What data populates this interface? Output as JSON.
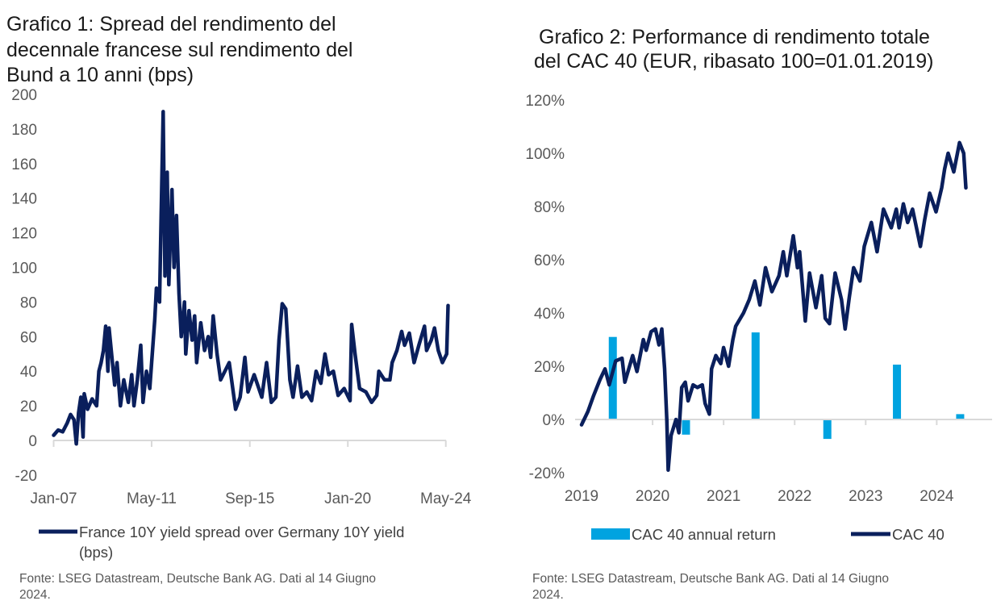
{
  "chart_data": [
    {
      "type": "line",
      "title_lines": [
        "Grafico 1: Spread del rendimento del",
        "decennale francese sul rendimento del",
        "Bund a 10 anni (bps)"
      ],
      "xlabel": "",
      "ylabel": "",
      "ylim": [
        -20,
        200
      ],
      "yticks": [
        "200",
        "180",
        "160",
        "140",
        "120",
        "100",
        "80",
        "60",
        "40",
        "20",
        "0",
        "-20"
      ],
      "ytick_values": [
        200,
        180,
        160,
        140,
        120,
        100,
        80,
        60,
        40,
        20,
        0,
        -20
      ],
      "xticks": [
        "Jan-07",
        "May-11",
        "Sep-15",
        "Jan-20",
        "May-24"
      ],
      "xtick_values": [
        2007.0,
        2011.33,
        2015.67,
        2020.0,
        2024.33
      ],
      "xlim": [
        2007.0,
        2024.33
      ],
      "legend": [
        "France 10Y yield spread over Germany 10Y yield",
        "(bps)"
      ],
      "legend_position": "bottom",
      "source": [
        "Fonte: LSEG Datastream, Deutsche Bank AG. Dati al 14 Giugno",
        "2024."
      ],
      "color": "#0a1f5c",
      "series": [
        {
          "name": "France 10Y yield spread over Germany 10Y yield (bps)",
          "points": [
            [
              2007.0,
              3
            ],
            [
              2007.2,
              6
            ],
            [
              2007.4,
              5
            ],
            [
              2007.6,
              10
            ],
            [
              2007.75,
              15
            ],
            [
              2007.9,
              12
            ],
            [
              2008.0,
              -2
            ],
            [
              2008.1,
              16
            ],
            [
              2008.2,
              25
            ],
            [
              2008.3,
              2
            ],
            [
              2008.35,
              27
            ],
            [
              2008.5,
              18
            ],
            [
              2008.7,
              24
            ],
            [
              2008.9,
              20
            ],
            [
              2009.0,
              40
            ],
            [
              2009.1,
              45
            ],
            [
              2009.2,
              52
            ],
            [
              2009.3,
              66
            ],
            [
              2009.4,
              40
            ],
            [
              2009.45,
              65
            ],
            [
              2009.6,
              45
            ],
            [
              2009.7,
              32
            ],
            [
              2009.8,
              45
            ],
            [
              2009.95,
              20
            ],
            [
              2010.1,
              35
            ],
            [
              2010.3,
              22
            ],
            [
              2010.45,
              38
            ],
            [
              2010.55,
              20
            ],
            [
              2010.7,
              35
            ],
            [
              2010.85,
              55
            ],
            [
              2010.95,
              22
            ],
            [
              2011.1,
              40
            ],
            [
              2011.25,
              30
            ],
            [
              2011.33,
              45
            ],
            [
              2011.47,
              70
            ],
            [
              2011.54,
              88
            ],
            [
              2011.68,
              80
            ],
            [
              2011.75,
              130
            ],
            [
              2011.84,
              190
            ],
            [
              2011.92,
              95
            ],
            [
              2012.02,
              155
            ],
            [
              2012.09,
              90
            ],
            [
              2012.23,
              145
            ],
            [
              2012.32,
              100
            ],
            [
              2012.43,
              130
            ],
            [
              2012.54,
              85
            ],
            [
              2012.64,
              60
            ],
            [
              2012.78,
              80
            ],
            [
              2012.84,
              50
            ],
            [
              2012.98,
              75
            ],
            [
              2013.12,
              58
            ],
            [
              2013.23,
              72
            ],
            [
              2013.32,
              45
            ],
            [
              2013.5,
              68
            ],
            [
              2013.67,
              52
            ],
            [
              2013.83,
              60
            ],
            [
              2013.94,
              48
            ],
            [
              2014.05,
              72
            ],
            [
              2014.22,
              50
            ],
            [
              2014.38,
              35
            ],
            [
              2014.76,
              45
            ],
            [
              2015.04,
              18
            ],
            [
              2015.24,
              25
            ],
            [
              2015.45,
              48
            ],
            [
              2015.59,
              28
            ],
            [
              2015.86,
              38
            ],
            [
              2016.2,
              25
            ],
            [
              2016.41,
              45
            ],
            [
              2016.62,
              22
            ],
            [
              2016.82,
              25
            ],
            [
              2016.96,
              58
            ],
            [
              2017.1,
              79
            ],
            [
              2017.26,
              76
            ],
            [
              2017.44,
              35
            ],
            [
              2017.58,
              25
            ],
            [
              2017.78,
              43
            ],
            [
              2017.97,
              25
            ],
            [
              2018.19,
              28
            ],
            [
              2018.4,
              23
            ],
            [
              2018.6,
              40
            ],
            [
              2018.81,
              33
            ],
            [
              2018.99,
              50
            ],
            [
              2019.15,
              38
            ],
            [
              2019.36,
              40
            ],
            [
              2019.57,
              26
            ],
            [
              2019.84,
              30
            ],
            [
              2020.1,
              23
            ],
            [
              2020.17,
              67
            ],
            [
              2020.32,
              50
            ],
            [
              2020.52,
              30
            ],
            [
              2020.8,
              28
            ],
            [
              2021.05,
              22
            ],
            [
              2021.28,
              26
            ],
            [
              2021.37,
              40
            ],
            [
              2021.62,
              35
            ],
            [
              2021.86,
              35
            ],
            [
              2021.96,
              45
            ],
            [
              2022.17,
              52
            ],
            [
              2022.38,
              63
            ],
            [
              2022.51,
              55
            ],
            [
              2022.72,
              62
            ],
            [
              2022.93,
              45
            ],
            [
              2023.14,
              55
            ],
            [
              2023.39,
              66
            ],
            [
              2023.48,
              52
            ],
            [
              2023.69,
              58
            ],
            [
              2023.83,
              65
            ],
            [
              2024.0,
              52
            ],
            [
              2024.18,
              45
            ],
            [
              2024.37,
              50
            ],
            [
              2024.43,
              78
            ]
          ]
        }
      ]
    },
    {
      "type": "bar+line",
      "title_lines": [
        "Grafico 2: Performance di rendimento totale",
        "del CAC 40 (EUR, ribasato 100=01.01.2019)"
      ],
      "xlabel": "",
      "ylabel": "",
      "ylim": [
        -20,
        120
      ],
      "yticks": [
        "120%",
        "100%",
        "80%",
        "60%",
        "40%",
        "20%",
        "0%",
        "-20%"
      ],
      "ytick_values": [
        120,
        100,
        80,
        60,
        40,
        20,
        0,
        -20
      ],
      "xticks": [
        "2019",
        "2020",
        "2021",
        "2022",
        "2023",
        "2024"
      ],
      "xtick_values": [
        2019,
        2020,
        2021,
        2022,
        2023,
        2024
      ],
      "xlim": [
        2019.0,
        2024.45
      ],
      "legend": [
        "CAC 40 annual return",
        "CAC 40"
      ],
      "legend_position": "bottom",
      "source": [
        "Fonte: LSEG Datastream, Deutsche Bank AG. Dati al 14 Giugno",
        "2024."
      ],
      "bar_color": "#00a3e0",
      "line_color": "#0a1f5c",
      "bars": {
        "name": "CAC 40 annual return",
        "categories": [
          "2019",
          "2020",
          "2021",
          "2022",
          "2023",
          "2024"
        ],
        "x": [
          2019.44,
          2020.47,
          2021.45,
          2022.46,
          2023.44,
          2024.33
        ],
        "values": [
          31,
          -5.7,
          32.7,
          -7.3,
          20.6,
          2.0
        ]
      },
      "series": [
        {
          "name": "CAC 40",
          "points": [
            [
              2019.0,
              -2
            ],
            [
              2019.09,
              3
            ],
            [
              2019.17,
              9
            ],
            [
              2019.26,
              15
            ],
            [
              2019.33,
              19
            ],
            [
              2019.39,
              13
            ],
            [
              2019.48,
              22
            ],
            [
              2019.57,
              23
            ],
            [
              2019.61,
              14
            ],
            [
              2019.72,
              24
            ],
            [
              2019.78,
              18
            ],
            [
              2019.87,
              30
            ],
            [
              2019.91,
              26
            ],
            [
              2019.98,
              33
            ],
            [
              2020.04,
              34
            ],
            [
              2020.09,
              28
            ],
            [
              2020.13,
              34
            ],
            [
              2020.17,
              19
            ],
            [
              2020.2,
              0
            ],
            [
              2020.22,
              -19
            ],
            [
              2020.26,
              -6
            ],
            [
              2020.33,
              0
            ],
            [
              2020.37,
              -5
            ],
            [
              2020.41,
              12
            ],
            [
              2020.46,
              14
            ],
            [
              2020.5,
              7
            ],
            [
              2020.57,
              13
            ],
            [
              2020.63,
              12
            ],
            [
              2020.7,
              13
            ],
            [
              2020.74,
              6
            ],
            [
              2020.8,
              2
            ],
            [
              2020.83,
              19
            ],
            [
              2020.89,
              24
            ],
            [
              2020.96,
              21
            ],
            [
              2021.0,
              27
            ],
            [
              2021.07,
              20
            ],
            [
              2021.13,
              30
            ],
            [
              2021.17,
              35
            ],
            [
              2021.28,
              40
            ],
            [
              2021.36,
              45
            ],
            [
              2021.44,
              52
            ],
            [
              2021.51,
              43
            ],
            [
              2021.59,
              57
            ],
            [
              2021.68,
              48
            ],
            [
              2021.78,
              54
            ],
            [
              2021.84,
              63
            ],
            [
              2021.89,
              54
            ],
            [
              2021.98,
              69
            ],
            [
              2022.04,
              57
            ],
            [
              2022.07,
              63
            ],
            [
              2022.15,
              37
            ],
            [
              2022.21,
              55
            ],
            [
              2022.3,
              42
            ],
            [
              2022.38,
              54
            ],
            [
              2022.43,
              38
            ],
            [
              2022.49,
              36
            ],
            [
              2022.57,
              55
            ],
            [
              2022.66,
              45
            ],
            [
              2022.71,
              34
            ],
            [
              2022.77,
              46
            ],
            [
              2022.83,
              57
            ],
            [
              2022.92,
              52
            ],
            [
              2022.98,
              65
            ],
            [
              2023.08,
              74
            ],
            [
              2023.16,
              63
            ],
            [
              2023.25,
              79
            ],
            [
              2023.36,
              72
            ],
            [
              2023.43,
              79
            ],
            [
              2023.47,
              72
            ],
            [
              2023.53,
              81
            ],
            [
              2023.59,
              74
            ],
            [
              2023.66,
              79
            ],
            [
              2023.77,
              65
            ],
            [
              2023.83,
              75
            ],
            [
              2023.9,
              85
            ],
            [
              2023.99,
              78
            ],
            [
              2024.07,
              87
            ],
            [
              2024.11,
              94
            ],
            [
              2024.16,
              100
            ],
            [
              2024.24,
              93
            ],
            [
              2024.32,
              104
            ],
            [
              2024.38,
              100
            ],
            [
              2024.41,
              87
            ]
          ]
        }
      ]
    }
  ]
}
